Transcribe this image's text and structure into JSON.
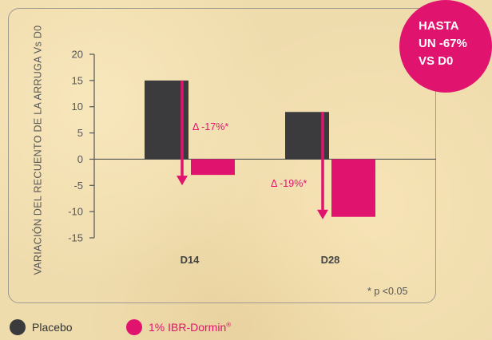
{
  "chart_data": {
    "type": "bar",
    "categories": [
      "D14",
      "D28"
    ],
    "series": [
      {
        "name": "Placebo",
        "values": [
          15,
          9
        ],
        "color": "#3b3b3d"
      },
      {
        "name": "1% IBR-Dormin",
        "values": [
          -3,
          -11
        ],
        "color": "#e0146e"
      }
    ],
    "ylabel": "VARIACIÓN DEL RECUENTO DE LA ARRUGA Vs D0",
    "yticks": [
      20,
      15,
      10,
      5,
      0,
      -5,
      -10,
      -15
    ],
    "ylim": [
      -15,
      20
    ],
    "annotations": [
      {
        "category": "D14",
        "text": "Δ -17%*",
        "from": 15,
        "to": -3
      },
      {
        "category": "D28",
        "text": "Δ -19%*",
        "from": 9,
        "to": -11
      }
    ],
    "footnote": "* p <0.05",
    "grid": false
  },
  "badge": {
    "text": "HASTA\nUN -67%\nVS D0"
  },
  "legend": {
    "placebo_label": "Placebo",
    "ibr_label": "1% IBR-Dormin",
    "ibr_mark": "®"
  },
  "colors": {
    "placebo": "#3b3b3d",
    "ibr": "#e0146e",
    "accent": "#e0146e"
  }
}
